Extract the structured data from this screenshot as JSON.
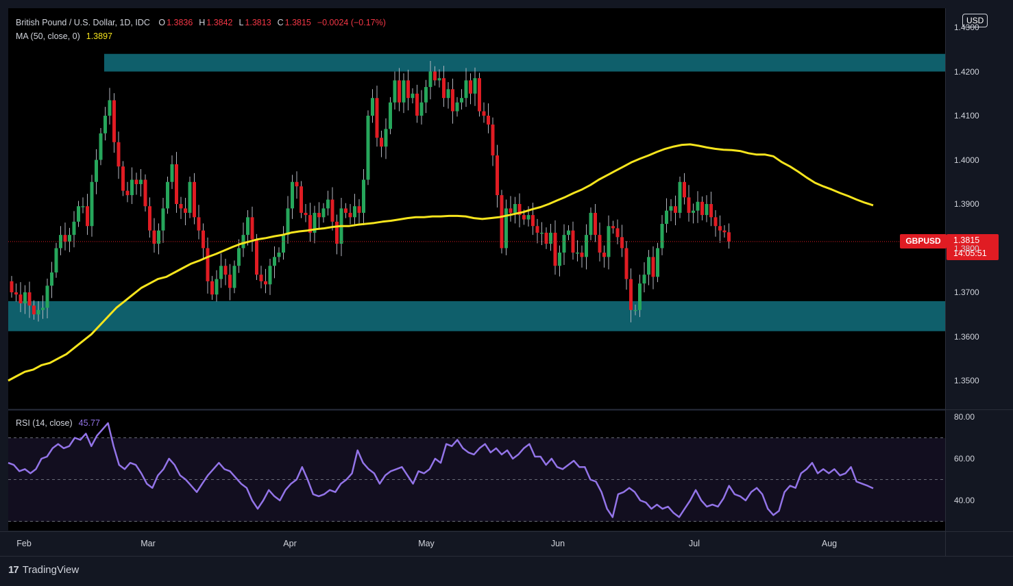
{
  "header": {
    "symbol_title": "British Pound / U.S. Dollar, 1D, IDC",
    "o_label": "O",
    "o_value": "1.3836",
    "h_label": "H",
    "h_value": "1.3842",
    "l_label": "L",
    "l_value": "1.3813",
    "c_label": "C",
    "c_value": "1.3815",
    "change": "−0.0024 (−0.17%)",
    "ma_label": "MA (50, close, 0)",
    "ma_value": "1.3897",
    "rsi_label": "RSI (14, close)",
    "rsi_value": "45.77"
  },
  "currency_badge": "USD",
  "price_tag": {
    "symbol": "GBPUSD",
    "price": "1.3815",
    "countdown": "14:05:51"
  },
  "footer": {
    "logo_mark": "17",
    "brand": "TradingView"
  },
  "colors": {
    "background": "#131722",
    "up": "#26a65b",
    "down": "#e01c23",
    "ma": "#f7e51d",
    "rsi": "#9374e8",
    "zone": "#0f5f6b"
  },
  "chart_data": [
    {
      "type": "candlestick",
      "title": "British Pound / U.S. Dollar, 1D, IDC",
      "ylim": [
        1.345,
        1.435
      ],
      "y_ticks": [
        "1.4300",
        "1.4200",
        "1.4100",
        "1.4000",
        "1.3900",
        "1.3800",
        "1.3700",
        "1.3600",
        "1.3500"
      ],
      "x_ticks": [
        "Feb",
        "Mar",
        "Apr",
        "May",
        "Jun",
        "Jul",
        "Aug"
      ],
      "zones": [
        {
          "top": 1.424,
          "bottom": 1.42
        },
        {
          "top": 1.368,
          "bottom": 1.3612
        }
      ],
      "series": [
        {
          "name": "GBPUSD",
          "closes": [
            1.37,
            1.3695,
            1.3675,
            1.37,
            1.367,
            1.365,
            1.366,
            1.3665,
            1.3715,
            1.3745,
            1.38,
            1.383,
            1.3815,
            1.383,
            1.386,
            1.3895,
            1.3895,
            1.385,
            1.395,
            1.4,
            1.406,
            1.41,
            1.4135,
            1.404,
            1.3985,
            1.393,
            1.392,
            1.3955,
            1.3945,
            1.3955,
            1.3895,
            1.384,
            1.381,
            1.384,
            1.389,
            1.395,
            1.399,
            1.39,
            1.389,
            1.388,
            1.395,
            1.387,
            1.384,
            1.38,
            1.3725,
            1.3695,
            1.373,
            1.376,
            1.374,
            1.371,
            1.376,
            1.38,
            1.383,
            1.387,
            1.382,
            1.374,
            1.3725,
            1.3718,
            1.376,
            1.378,
            1.379,
            1.383,
            1.389,
            1.395,
            1.394,
            1.388,
            1.3875,
            1.3835,
            1.388,
            1.387,
            1.389,
            1.391,
            1.386,
            1.381,
            1.389,
            1.388,
            1.387,
            1.3895,
            1.388,
            1.3955,
            1.41,
            1.414,
            1.405,
            1.403,
            1.407,
            1.413,
            1.418,
            1.413,
            1.418,
            1.414,
            1.415,
            1.41,
            1.413,
            1.4165,
            1.42,
            1.418,
            1.4185,
            1.414,
            1.416,
            1.411,
            1.413,
            1.414,
            1.418,
            1.415,
            1.4185,
            1.411,
            1.41,
            1.408,
            1.401,
            1.392,
            1.38,
            1.389,
            1.388,
            1.39,
            1.3875,
            1.3865,
            1.3875,
            1.385,
            1.3835,
            1.3835,
            1.381,
            1.3835,
            1.376,
            1.379,
            1.383,
            1.384,
            1.379,
            1.379,
            1.378,
            1.383,
            1.388,
            1.383,
            1.379,
            1.378,
            1.385,
            1.3845,
            1.3825,
            1.38,
            1.373,
            1.366,
            1.366,
            1.372,
            1.374,
            1.378,
            1.3735,
            1.38,
            1.3855,
            1.3885,
            1.3895,
            1.388,
            1.395,
            1.3915,
            1.388,
            1.3885,
            1.3905,
            1.3875,
            1.39,
            1.387,
            1.385,
            1.384,
            1.3836,
            1.3815
          ]
        }
      ]
    },
    {
      "type": "line",
      "title": "MA (50, close, 0)",
      "series": [
        {
          "name": "MA (50, close, 0)",
          "values": [
            1.35,
            1.351,
            1.352,
            1.3525,
            1.3535,
            1.354,
            1.355,
            1.356,
            1.3575,
            1.359,
            1.3605,
            1.3625,
            1.3645,
            1.3665,
            1.368,
            1.3695,
            1.371,
            1.372,
            1.373,
            1.3735,
            1.3745,
            1.3755,
            1.3765,
            1.3772,
            1.378,
            1.3787,
            1.3795,
            1.3803,
            1.381,
            1.3815,
            1.382,
            1.3823,
            1.3827,
            1.383,
            1.3835,
            1.3838,
            1.384,
            1.3843,
            1.3845,
            1.3848,
            1.385,
            1.385,
            1.3853,
            1.3855,
            1.3857,
            1.386,
            1.3862,
            1.3865,
            1.3868,
            1.387,
            1.387,
            1.3872,
            1.3872,
            1.3873,
            1.3873,
            1.3872,
            1.3868,
            1.3866,
            1.3868,
            1.387,
            1.3874,
            1.3878,
            1.3882,
            1.3888,
            1.3893,
            1.39,
            1.3908,
            1.3916,
            1.3925,
            1.3933,
            1.3943,
            1.3955,
            1.3965,
            1.3975,
            1.3985,
            1.3995,
            1.4003,
            1.401,
            1.4018,
            1.4025,
            1.403,
            1.4034,
            1.4035,
            1.4032,
            1.4028,
            1.4025,
            1.4023,
            1.4022,
            1.402,
            1.4015,
            1.4012,
            1.4012,
            1.4008,
            1.3995,
            1.3985,
            1.3973,
            1.396,
            1.3948,
            1.394,
            1.3933,
            1.3925,
            1.3918,
            1.391,
            1.3903,
            1.3897
          ]
        }
      ]
    },
    {
      "type": "line",
      "title": "RSI (14, close)",
      "ylim": [
        25,
        83
      ],
      "y_ticks": [
        "80.00",
        "60.00",
        "40.00"
      ],
      "bands": [
        70,
        50,
        30
      ],
      "series": [
        {
          "name": "RSI (14, close)",
          "values": [
            58,
            57,
            54,
            55,
            53,
            55,
            60,
            61,
            65,
            67,
            65,
            66,
            70,
            69,
            72,
            66,
            71,
            74,
            77,
            66,
            57,
            55,
            58,
            57,
            53,
            48,
            46,
            52,
            55,
            60,
            57,
            52,
            50,
            47,
            44,
            48,
            52,
            55,
            58,
            55,
            54,
            51,
            48,
            46,
            40,
            36,
            40,
            45,
            42,
            40,
            45,
            48,
            50,
            56,
            50,
            43,
            42,
            43,
            45,
            44,
            48,
            50,
            53,
            64,
            58,
            55,
            53,
            48,
            52,
            54,
            55,
            56,
            52,
            48,
            54,
            53,
            55,
            60,
            58,
            67,
            66,
            69,
            65,
            63,
            62,
            65,
            67,
            63,
            65,
            62,
            64,
            60,
            62,
            65,
            67,
            61,
            61,
            57,
            60,
            56,
            55,
            57,
            59,
            56,
            56,
            50,
            49,
            44,
            36,
            32,
            43,
            44,
            46,
            44,
            40,
            39,
            36,
            38,
            36,
            37,
            34,
            32,
            36,
            40,
            45,
            40,
            37,
            38,
            37,
            41,
            47,
            43,
            42,
            40,
            44,
            46,
            43,
            36,
            33,
            35,
            44,
            47,
            46,
            53,
            55,
            58,
            53,
            55,
            53,
            55,
            52,
            53,
            56,
            49,
            48,
            47,
            45.77
          ]
        }
      ]
    }
  ]
}
